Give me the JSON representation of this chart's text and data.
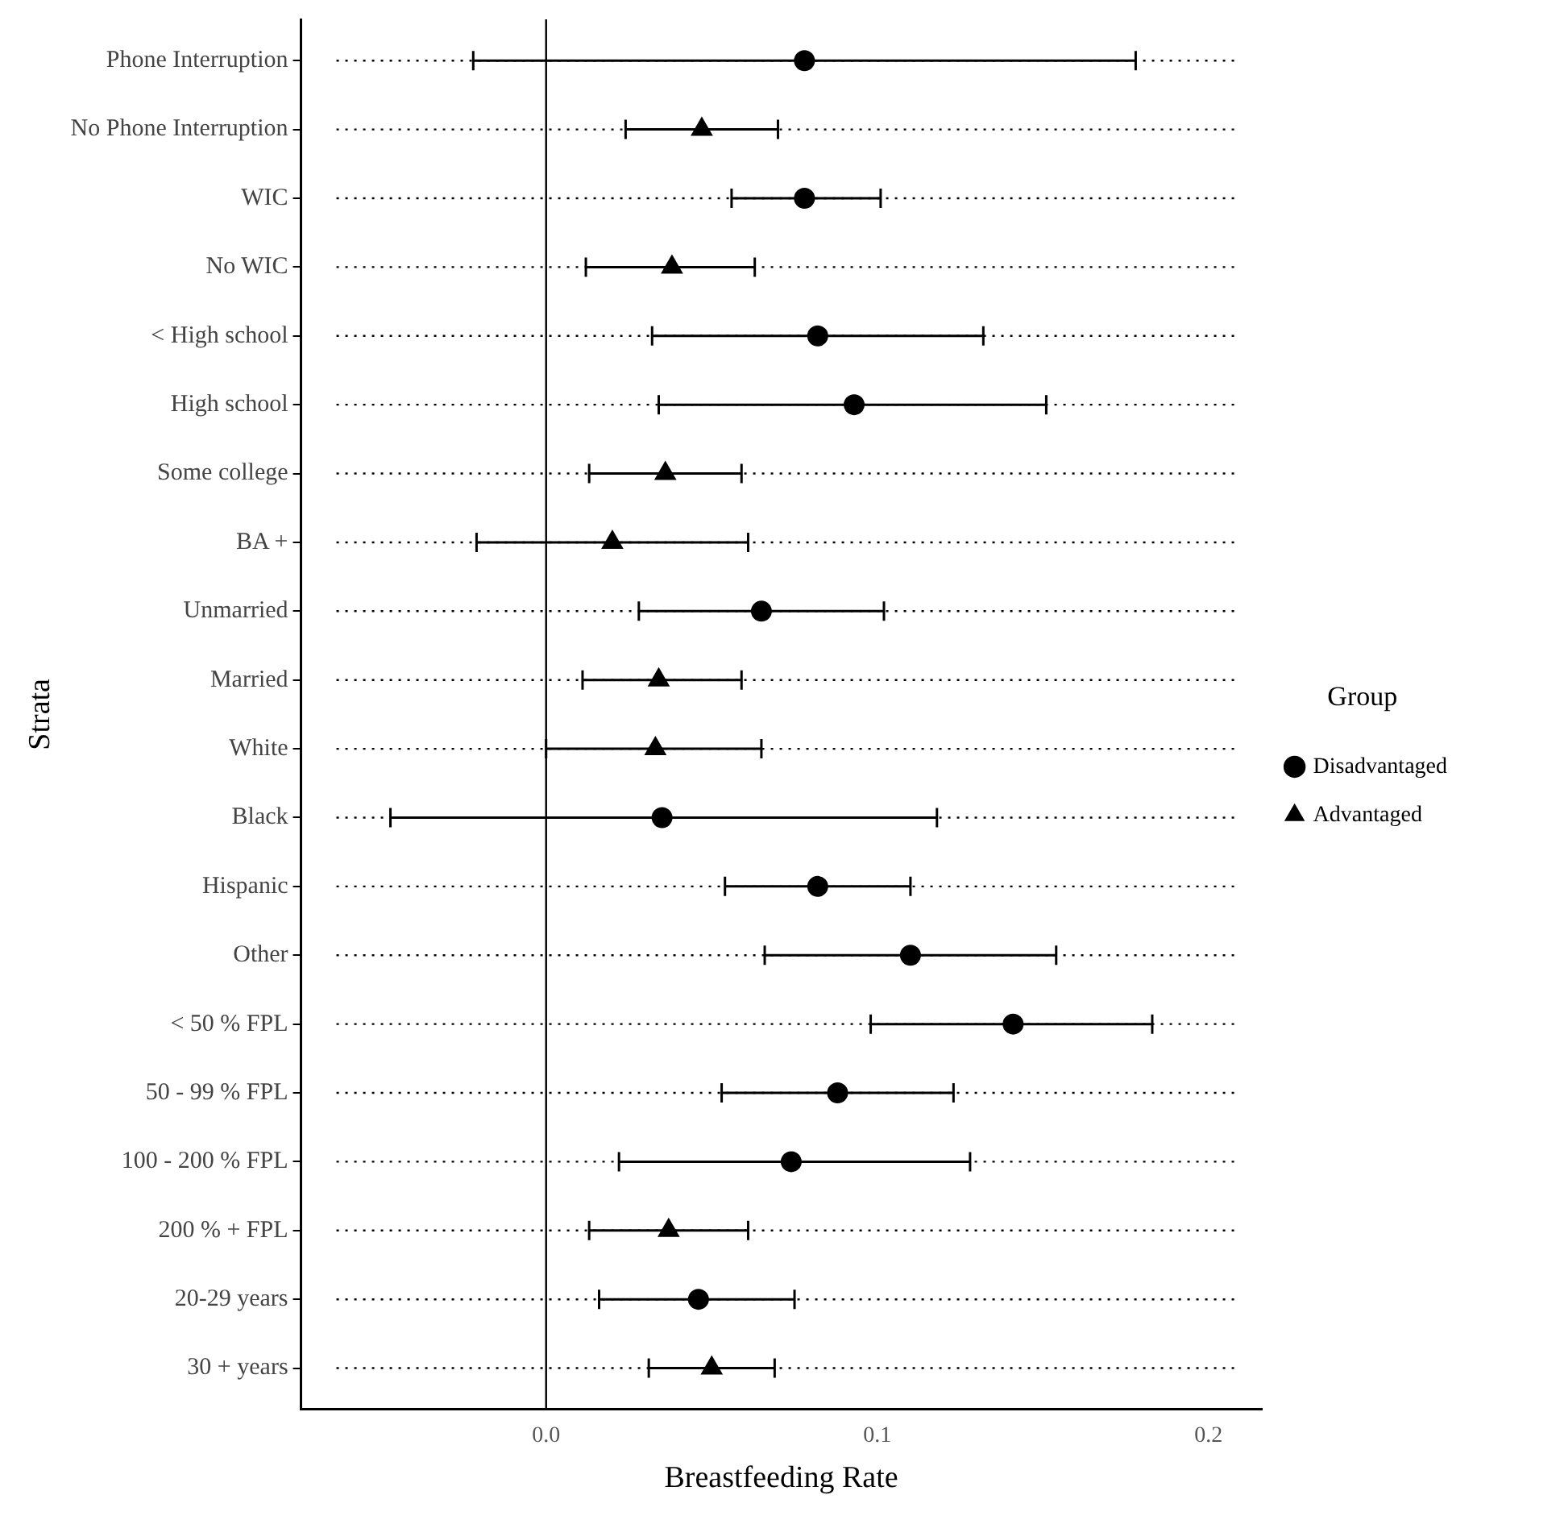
{
  "chart_data": {
    "type": "scatter",
    "orientation": "horizontal",
    "xlabel": "Breastfeeding Rate",
    "ylabel": "Strata",
    "legend_title": "Group",
    "legend": "right",
    "grid": "y",
    "line_style": "dotted",
    "categories": [
      "Phone Interruption",
      "No Phone Interruption",
      "WIC",
      "No WIC",
      "< High school",
      "High school",
      "Some college",
      "BA +",
      "Unmarried",
      "Married",
      "White",
      "Black",
      "Hispanic",
      "Other",
      "< 50 % FPL",
      "50 - 99 % FPL",
      "100 - 200 % FPL",
      "200 % + FPL",
      "20-29 years",
      "30 + years"
    ],
    "xlim": [
      -0.074,
      0.216
    ],
    "xticks": [
      {
        "value": 0,
        "label": "0.0"
      },
      0.1,
      0.2
    ],
    "ref_lines": [
      {
        "axis": "x",
        "value": 0,
        "color": "#000000",
        "line_style": "solid"
      }
    ],
    "series": [
      {
        "name": "Disadvantaged",
        "color": "#000000",
        "marker": "circle",
        "values": [
          0.078,
          null,
          0.078,
          null,
          0.082,
          0.093,
          null,
          null,
          0.065,
          null,
          null,
          0.035,
          0.082,
          0.11,
          0.141,
          0.088,
          0.074,
          null,
          0.046,
          null
        ],
        "errors": [
          [
            -0.022,
            0.178
          ],
          null,
          [
            0.056,
            0.101
          ],
          null,
          [
            0.032,
            0.132
          ],
          [
            0.034,
            0.151
          ],
          null,
          null,
          [
            0.028,
            0.102
          ],
          null,
          null,
          [
            -0.047,
            0.118
          ],
          [
            0.054,
            0.11
          ],
          [
            0.066,
            0.154
          ],
          [
            0.098,
            0.183
          ],
          [
            0.053,
            0.123
          ],
          [
            0.022,
            0.128
          ],
          null,
          [
            0.016,
            0.075
          ],
          null
        ]
      },
      {
        "name": "Advantaged",
        "color": "#000000",
        "marker": "triangle",
        "values": [
          null,
          0.047,
          null,
          0.038,
          null,
          null,
          0.036,
          0.02,
          null,
          0.034,
          0.033,
          null,
          null,
          null,
          null,
          null,
          null,
          0.037,
          null,
          0.05
        ],
        "errors": [
          null,
          [
            0.024,
            0.07
          ],
          null,
          [
            0.012,
            0.063
          ],
          null,
          null,
          [
            0.013,
            0.059
          ],
          [
            -0.021,
            0.061
          ],
          null,
          [
            0.011,
            0.059
          ],
          [
            0.0,
            0.065
          ],
          null,
          null,
          null,
          null,
          null,
          null,
          [
            0.013,
            0.061
          ],
          null,
          [
            0.031,
            0.069
          ]
        ]
      }
    ]
  }
}
